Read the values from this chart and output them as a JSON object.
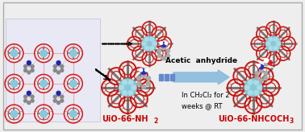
{
  "background_color": "#eeeeee",
  "border_color": "#aaaaaa",
  "label_left": "UiO-66-NH₂",
  "label_right": "UiO-66-NHCOCH₃",
  "label_color": "#cc0000",
  "arrow_text_line1": "Acetic  anhydride",
  "arrow_text_line2": "In CH₂Cl₂ for 2",
  "arrow_text_line3": "weeks @ RT",
  "arrow_color": "#88bbdd",
  "label_fontsize": 7.0,
  "fig_width": 3.78,
  "fig_height": 1.64,
  "lattice_bg": "#e8e8f8",
  "lattice_border": "#aaaacc",
  "lattice_linker_color": "#e8aaaa",
  "lattice_node_red": "#dd1111",
  "lattice_node_teal": "#88c8d8",
  "lattice_blue_dot": "#2222aa",
  "mof_red": "#cc1111",
  "mof_teal": "#88c8d8",
  "mof_gray_rod": "#777777",
  "mof_spoke_color": "#888866",
  "mol_gray": "#999999",
  "mol_blue": "#2233bb",
  "mol_red": "#cc2222",
  "mol_white": "#f0f0f0"
}
